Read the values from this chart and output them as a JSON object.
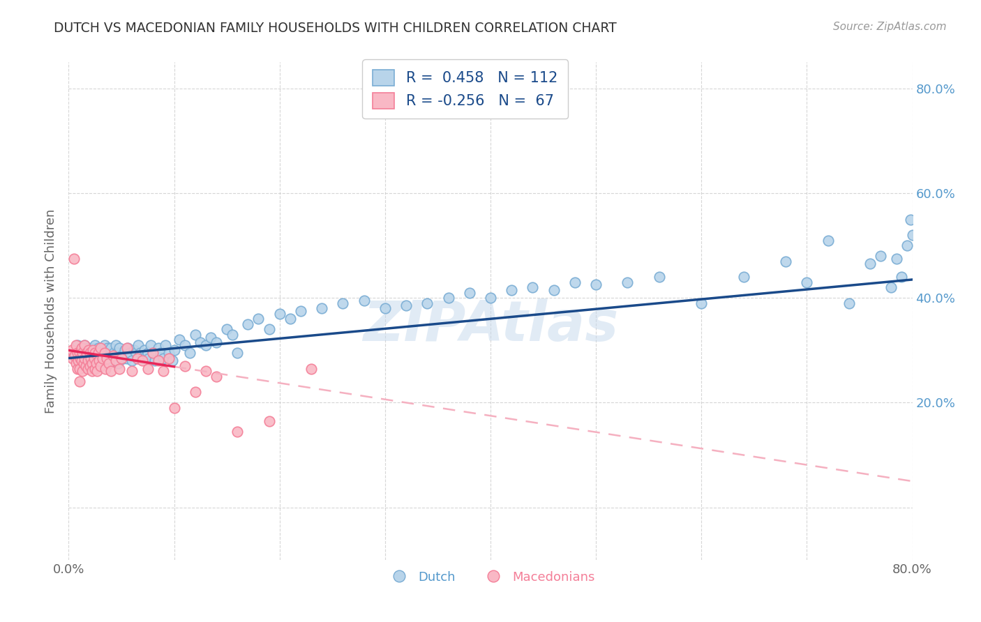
{
  "title": "DUTCH VS MACEDONIAN FAMILY HOUSEHOLDS WITH CHILDREN CORRELATION CHART",
  "source": "Source: ZipAtlas.com",
  "ylabel": "Family Households with Children",
  "watermark": "ZIPAtlas",
  "dutch_R": 0.458,
  "dutch_N": 112,
  "mac_R": -0.256,
  "mac_N": 67,
  "xlim": [
    0.0,
    0.8
  ],
  "ylim": [
    -0.1,
    0.85
  ],
  "dutch_color": "#7aadd4",
  "mac_color": "#f47f98",
  "dutch_color_fill": "#b8d4ea",
  "mac_color_fill": "#f9b8c5",
  "trend_dutch_color": "#1a4a8a",
  "trend_mac_color": "#e8285a",
  "trend_mac_dashed_color": "#f5b0c0",
  "background": "#ffffff",
  "grid_color": "#cccccc",
  "right_axis_color": "#5599cc",
  "dutch_scatter_x": [
    0.005,
    0.008,
    0.01,
    0.012,
    0.015,
    0.015,
    0.017,
    0.018,
    0.02,
    0.02,
    0.022,
    0.023,
    0.024,
    0.025,
    0.025,
    0.026,
    0.027,
    0.028,
    0.028,
    0.03,
    0.03,
    0.032,
    0.033,
    0.034,
    0.035,
    0.036,
    0.037,
    0.038,
    0.04,
    0.04,
    0.042,
    0.043,
    0.044,
    0.045,
    0.046,
    0.047,
    0.048,
    0.05,
    0.052,
    0.053,
    0.054,
    0.055,
    0.056,
    0.058,
    0.06,
    0.062,
    0.064,
    0.065,
    0.066,
    0.068,
    0.07,
    0.072,
    0.074,
    0.075,
    0.076,
    0.078,
    0.08,
    0.082,
    0.085,
    0.087,
    0.09,
    0.092,
    0.095,
    0.098,
    0.1,
    0.105,
    0.11,
    0.115,
    0.12,
    0.125,
    0.13,
    0.135,
    0.14,
    0.15,
    0.155,
    0.16,
    0.17,
    0.18,
    0.19,
    0.2,
    0.21,
    0.22,
    0.24,
    0.26,
    0.28,
    0.3,
    0.32,
    0.34,
    0.36,
    0.38,
    0.4,
    0.42,
    0.44,
    0.46,
    0.48,
    0.5,
    0.53,
    0.56,
    0.6,
    0.64,
    0.68,
    0.7,
    0.72,
    0.74,
    0.76,
    0.77,
    0.78,
    0.785,
    0.79,
    0.795,
    0.798,
    0.8
  ],
  "dutch_scatter_y": [
    0.29,
    0.31,
    0.295,
    0.3,
    0.285,
    0.31,
    0.295,
    0.305,
    0.28,
    0.3,
    0.29,
    0.305,
    0.295,
    0.285,
    0.31,
    0.295,
    0.28,
    0.305,
    0.29,
    0.285,
    0.3,
    0.295,
    0.285,
    0.31,
    0.295,
    0.275,
    0.305,
    0.29,
    0.28,
    0.305,
    0.29,
    0.295,
    0.28,
    0.31,
    0.295,
    0.275,
    0.305,
    0.29,
    0.285,
    0.3,
    0.29,
    0.285,
    0.305,
    0.295,
    0.28,
    0.3,
    0.295,
    0.285,
    0.31,
    0.295,
    0.285,
    0.3,
    0.29,
    0.295,
    0.285,
    0.31,
    0.295,
    0.28,
    0.305,
    0.295,
    0.285,
    0.31,
    0.295,
    0.28,
    0.3,
    0.32,
    0.31,
    0.295,
    0.33,
    0.315,
    0.31,
    0.325,
    0.315,
    0.34,
    0.33,
    0.295,
    0.35,
    0.36,
    0.34,
    0.37,
    0.36,
    0.375,
    0.38,
    0.39,
    0.395,
    0.38,
    0.385,
    0.39,
    0.4,
    0.41,
    0.4,
    0.415,
    0.42,
    0.415,
    0.43,
    0.425,
    0.43,
    0.44,
    0.39,
    0.44,
    0.47,
    0.43,
    0.51,
    0.39,
    0.465,
    0.48,
    0.42,
    0.475,
    0.44,
    0.5,
    0.55,
    0.52
  ],
  "mac_scatter_x": [
    0.003,
    0.004,
    0.005,
    0.006,
    0.007,
    0.007,
    0.008,
    0.008,
    0.009,
    0.01,
    0.01,
    0.01,
    0.011,
    0.012,
    0.012,
    0.013,
    0.013,
    0.014,
    0.015,
    0.015,
    0.016,
    0.017,
    0.018,
    0.018,
    0.019,
    0.02,
    0.02,
    0.021,
    0.022,
    0.022,
    0.023,
    0.024,
    0.025,
    0.025,
    0.026,
    0.027,
    0.028,
    0.029,
    0.03,
    0.03,
    0.032,
    0.034,
    0.035,
    0.036,
    0.038,
    0.04,
    0.042,
    0.045,
    0.048,
    0.05,
    0.055,
    0.06,
    0.065,
    0.07,
    0.075,
    0.08,
    0.085,
    0.09,
    0.095,
    0.1,
    0.11,
    0.12,
    0.13,
    0.14,
    0.16,
    0.19,
    0.23
  ],
  "mac_scatter_y": [
    0.3,
    0.285,
    0.475,
    0.29,
    0.31,
    0.275,
    0.295,
    0.265,
    0.28,
    0.295,
    0.265,
    0.24,
    0.285,
    0.305,
    0.28,
    0.26,
    0.295,
    0.275,
    0.31,
    0.285,
    0.27,
    0.295,
    0.265,
    0.28,
    0.3,
    0.295,
    0.27,
    0.285,
    0.275,
    0.26,
    0.3,
    0.285,
    0.265,
    0.295,
    0.275,
    0.26,
    0.295,
    0.28,
    0.305,
    0.27,
    0.285,
    0.295,
    0.265,
    0.285,
    0.275,
    0.26,
    0.29,
    0.28,
    0.265,
    0.285,
    0.305,
    0.26,
    0.285,
    0.28,
    0.265,
    0.295,
    0.28,
    0.26,
    0.285,
    0.19,
    0.27,
    0.22,
    0.26,
    0.25,
    0.145,
    0.165,
    0.265
  ]
}
